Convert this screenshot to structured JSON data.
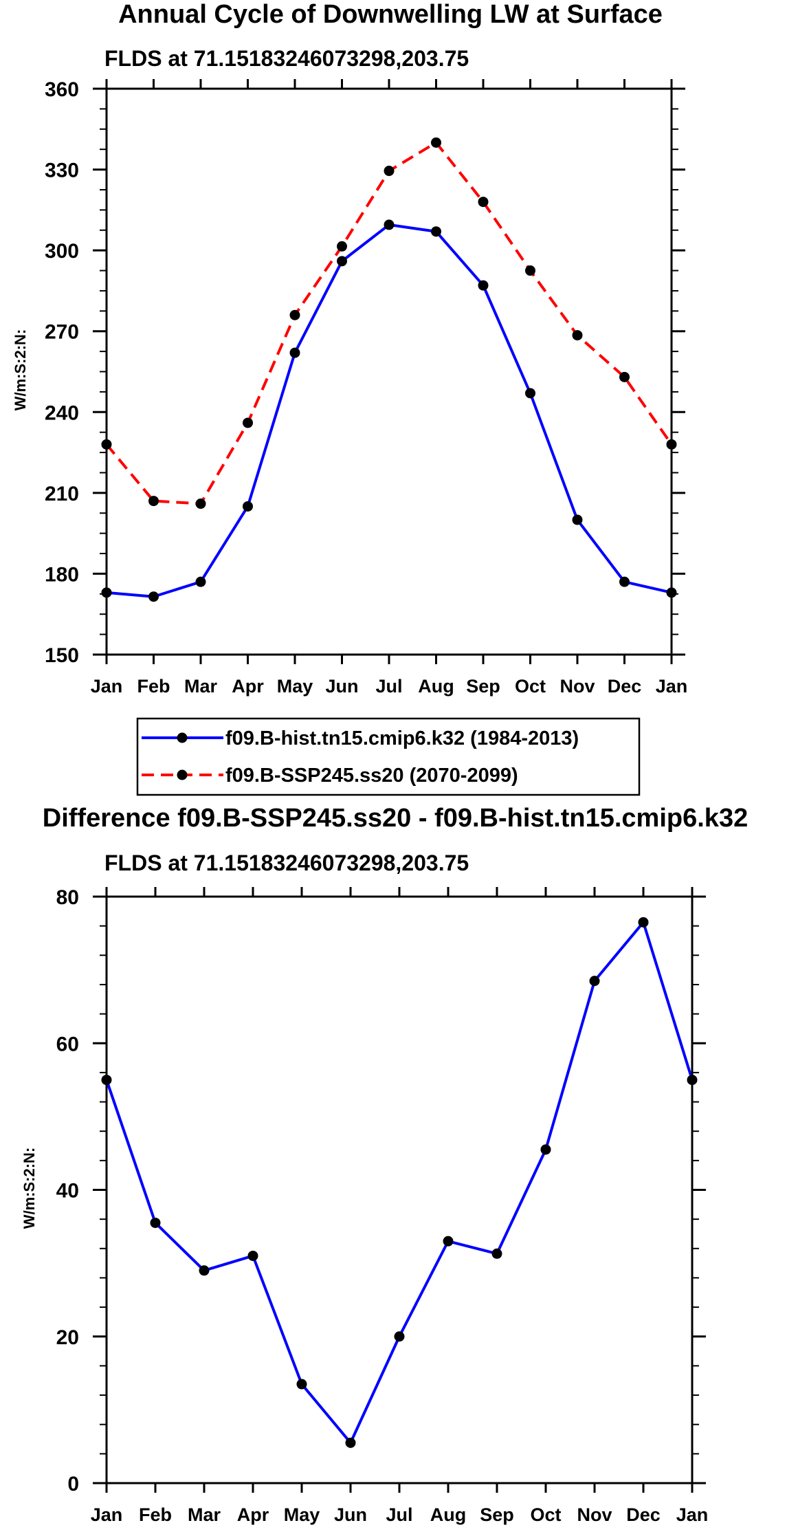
{
  "main_title": "Annual Cycle of Downwelling LW at Surface",
  "chart_data": [
    {
      "type": "line",
      "title": "Annual Cycle of Downwelling LW at Surface",
      "subtitle": "FLDS at 71.15183246073298,203.75",
      "xlabel": "",
      "ylabel": "W/m:S:2:N:",
      "categories": [
        "Jan",
        "Feb",
        "Mar",
        "Apr",
        "May",
        "Jun",
        "Jul",
        "Aug",
        "Sep",
        "Oct",
        "Nov",
        "Dec",
        "Jan"
      ],
      "ylim": [
        150,
        360
      ],
      "yticks": [
        150,
        180,
        210,
        240,
        270,
        300,
        330,
        360
      ],
      "series": [
        {
          "name": "f09.B-hist.tn15.cmip6.k32 (1984-2013)",
          "color": "#0000ff",
          "dash": "solid",
          "values": [
            173,
            171.5,
            177,
            205,
            262,
            296,
            309.5,
            307,
            287,
            247,
            200,
            177,
            173
          ]
        },
        {
          "name": "f09.B-SSP245.ss20 (2070-2099)",
          "color": "#ff0000",
          "dash": "dashed",
          "values": [
            228,
            207,
            206,
            236,
            276,
            301.5,
            329.5,
            340,
            318,
            292.5,
            268.5,
            253,
            228
          ]
        }
      ],
      "legend": [
        {
          "label": "f09.B-hist.tn15.cmip6.k32 (1984-2013)",
          "color": "#0000ff",
          "dash": "solid"
        },
        {
          "label": "f09.B-SSP245.ss20 (2070-2099)",
          "color": "#ff0000",
          "dash": "dashed"
        }
      ],
      "legend_position": "below"
    },
    {
      "type": "line",
      "title": "Difference f09.B-SSP245.ss20 - f09.B-hist.tn15.cmip6.k32",
      "subtitle": "FLDS at 71.15183246073298,203.75",
      "xlabel": "",
      "ylabel": "W/m:S:2:N:",
      "categories": [
        "Jan",
        "Feb",
        "Mar",
        "Apr",
        "May",
        "Jun",
        "Jul",
        "Aug",
        "Sep",
        "Oct",
        "Nov",
        "Dec",
        "Jan"
      ],
      "ylim": [
        0,
        80
      ],
      "yticks": [
        0,
        20,
        40,
        60,
        80
      ],
      "series": [
        {
          "name": "Difference",
          "color": "#0000ff",
          "dash": "solid",
          "values": [
            55,
            35.5,
            29,
            31,
            13.5,
            5.5,
            20,
            33,
            31.3,
            45.5,
            68.5,
            76.5,
            55
          ]
        }
      ]
    }
  ]
}
